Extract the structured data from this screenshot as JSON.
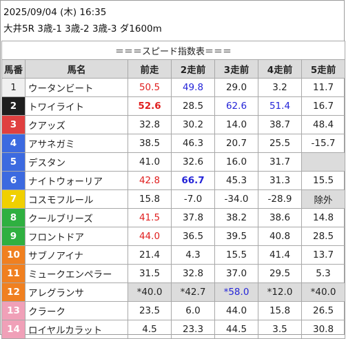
{
  "header": {
    "line1": "2025/09/04 (木) 16:35",
    "line2": "大井5R 3歳-1 3歳-2 3歳-3 ダ1600m",
    "banner": "＝＝＝スピード指数表＝＝＝"
  },
  "columns": [
    "馬番",
    "馬名",
    "前走",
    "2走前",
    "3走前",
    "4走前",
    "5走前"
  ],
  "colors": {
    "gate": [
      "#f0f0f0",
      "#1e1e1e",
      "#e04040",
      "#3c6ae0",
      "#3c6ae0",
      "#3c6ae0",
      "#f0d000",
      "#2fb040",
      "#2fb040",
      "#f08020",
      "#f08020",
      "#f08020",
      "#f0a0b8",
      "#f0a0b8"
    ],
    "red": "#e02020",
    "blue": "#2424d8",
    "shade": "#dcdcdc"
  },
  "rows": [
    {
      "num": "1",
      "name": "ウータンビート",
      "v": [
        "50.5",
        "49.8",
        "29.0",
        "3.2",
        "11.7"
      ],
      "style": [
        "red",
        "blue",
        "",
        "",
        ""
      ]
    },
    {
      "num": "2",
      "name": "トワイライト",
      "v": [
        "52.6",
        "28.5",
        "62.6",
        "51.4",
        "16.7"
      ],
      "style": [
        "red bold",
        "",
        "blue",
        "blue",
        ""
      ]
    },
    {
      "num": "3",
      "name": "クアッズ",
      "v": [
        "32.8",
        "30.2",
        "14.0",
        "38.7",
        "48.4"
      ],
      "style": [
        "",
        "",
        "",
        "",
        ""
      ]
    },
    {
      "num": "4",
      "name": "アサネガミ",
      "v": [
        "38.5",
        "46.3",
        "20.7",
        "25.5",
        "-15.7"
      ],
      "style": [
        "",
        "",
        "",
        "",
        ""
      ]
    },
    {
      "num": "5",
      "name": "デスタン",
      "v": [
        "41.0",
        "32.6",
        "16.0",
        "31.7",
        ""
      ],
      "style": [
        "",
        "",
        "",
        "",
        "gray"
      ]
    },
    {
      "num": "6",
      "name": "ナイトウォーリア",
      "v": [
        "42.8",
        "66.7",
        "45.3",
        "31.3",
        "15.5"
      ],
      "style": [
        "red",
        "blue bold",
        "",
        "",
        ""
      ]
    },
    {
      "num": "7",
      "name": "コスモフルール",
      "v": [
        "15.8",
        "-7.0",
        "-34.0",
        "-28.9",
        "除外"
      ],
      "style": [
        "",
        "",
        "",
        "",
        "gray"
      ]
    },
    {
      "num": "8",
      "name": "クールブリーズ",
      "v": [
        "41.5",
        "37.8",
        "38.2",
        "38.6",
        "14.8"
      ],
      "style": [
        "red",
        "",
        "",
        "",
        ""
      ]
    },
    {
      "num": "9",
      "name": "フロントドア",
      "v": [
        "44.0",
        "36.5",
        "39.5",
        "40.8",
        "28.5"
      ],
      "style": [
        "red",
        "",
        "",
        "",
        ""
      ]
    },
    {
      "num": "10",
      "name": "サブノアイナ",
      "v": [
        "21.4",
        "4.3",
        "15.5",
        "41.4",
        "13.7"
      ],
      "style": [
        "",
        "",
        "",
        "",
        ""
      ]
    },
    {
      "num": "11",
      "name": "ミュークエンペラー",
      "v": [
        "31.5",
        "32.8",
        "37.0",
        "29.5",
        "5.3"
      ],
      "style": [
        "",
        "",
        "",
        "",
        ""
      ]
    },
    {
      "num": "12",
      "name": "アレグランサ",
      "v": [
        "*40.0",
        "*42.7",
        "*58.0",
        "*12.0",
        "*40.0"
      ],
      "style": [
        "gray",
        "gray",
        "gray blue",
        "gray",
        "gray"
      ]
    },
    {
      "num": "13",
      "name": "クラーク",
      "v": [
        "23.5",
        "6.0",
        "44.0",
        "15.8",
        "26.5"
      ],
      "style": [
        "",
        "",
        "",
        "",
        ""
      ]
    },
    {
      "num": "14",
      "name": "ロイヤルカラット",
      "v": [
        "4.5",
        "23.3",
        "44.5",
        "3.5",
        "30.8"
      ],
      "style": [
        "",
        "",
        "",
        "",
        ""
      ]
    }
  ]
}
